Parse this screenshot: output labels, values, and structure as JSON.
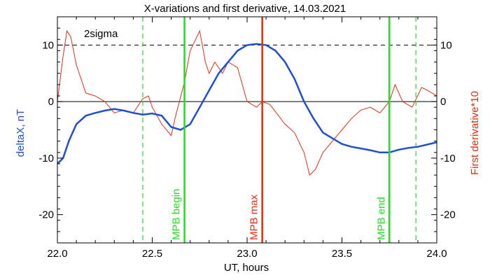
{
  "chart_data": {
    "type": "line",
    "title": "X-variations and first derivative, 14.03.2021",
    "xlabel": "UT, hours",
    "ylabel": "deltaX, nT",
    "ylabel_right": "First derivative*10",
    "xlim": [
      22.0,
      24.0
    ],
    "ylim": [
      -25,
      15
    ],
    "x_ticks": [
      22.0,
      22.5,
      23.0,
      23.5,
      24.0
    ],
    "x_tick_labels": [
      "22.0",
      "22.5",
      "23.0",
      "23.5",
      "24.0"
    ],
    "y_ticks": [
      -20,
      -10,
      0,
      10
    ],
    "y_tick_labels": [
      "-20",
      "-10",
      "0",
      "10"
    ],
    "grid": false,
    "colors": {
      "deltaX": "#1f4fd1",
      "derivative": "#e03010",
      "mpb_marker": "#22dd22",
      "mpb_max": "#e03010",
      "axis_left_label": "#1f4fd1",
      "axis_right_label": "#e03010"
    },
    "sigma_label": "2sigma",
    "sigma_level": 10,
    "series": [
      {
        "key": "deltaX",
        "x": [
          22.0,
          22.03,
          22.06,
          22.1,
          22.15,
          22.2,
          22.25,
          22.3,
          22.35,
          22.4,
          22.45,
          22.5,
          22.55,
          22.6,
          22.65,
          22.7,
          22.75,
          22.8,
          22.85,
          22.9,
          22.95,
          23.0,
          23.05,
          23.1,
          23.15,
          23.2,
          23.25,
          23.3,
          23.35,
          23.4,
          23.45,
          23.5,
          23.55,
          23.6,
          23.65,
          23.7,
          23.75,
          23.8,
          23.85,
          23.9,
          23.95,
          24.0
        ],
        "values": [
          -11.0,
          -10.0,
          -7.0,
          -4.0,
          -2.5,
          -2.0,
          -1.6,
          -1.3,
          -1.6,
          -2.0,
          -2.3,
          -2.1,
          -2.5,
          -4.5,
          -5.0,
          -4.0,
          -1.0,
          2.0,
          5.0,
          7.0,
          9.0,
          10.0,
          10.2,
          10.0,
          9.0,
          7.0,
          4.0,
          0.0,
          -3.0,
          -5.5,
          -6.5,
          -7.5,
          -8.0,
          -8.3,
          -8.6,
          -9.0,
          -9.0,
          -8.5,
          -8.2,
          -8.0,
          -7.6,
          -7.2
        ]
      },
      {
        "key": "derivative",
        "x": [
          22.0,
          22.03,
          22.05,
          22.07,
          22.1,
          22.13,
          22.15,
          22.2,
          22.25,
          22.3,
          22.35,
          22.4,
          22.45,
          22.48,
          22.5,
          22.55,
          22.6,
          22.62,
          22.67,
          22.7,
          22.75,
          22.78,
          22.8,
          22.83,
          22.87,
          22.9,
          22.95,
          23.0,
          23.05,
          23.08,
          23.12,
          23.2,
          23.25,
          23.3,
          23.33,
          23.36,
          23.4,
          23.45,
          23.5,
          23.55,
          23.6,
          23.65,
          23.7,
          23.75,
          23.78,
          23.82,
          23.87,
          23.92,
          23.95,
          24.0
        ],
        "values": [
          0.0,
          8.0,
          12.5,
          11.5,
          6.5,
          3.5,
          1.5,
          1.0,
          0.0,
          -2.0,
          -1.5,
          -2.0,
          0.5,
          1.0,
          -1.0,
          -4.0,
          -6.0,
          -3.0,
          3.5,
          9.0,
          12.5,
          7.0,
          5.0,
          7.0,
          5.0,
          7.0,
          6.0,
          0.0,
          -1.0,
          0.0,
          -0.5,
          -4.0,
          -5.5,
          -9.0,
          -13.0,
          -12.0,
          -9.0,
          -7.0,
          -5.0,
          -3.0,
          -1.5,
          -1.0,
          -2.0,
          0.0,
          3.0,
          0.0,
          -1.0,
          2.5,
          2.0,
          1.0
        ]
      }
    ],
    "annotations": [
      {
        "label": "MPB begin",
        "x": 22.67,
        "style": "solid",
        "color_key": "mpb_marker"
      },
      {
        "label": "MPB max",
        "x": 23.08,
        "style": "solid",
        "color_key": "mpb_max"
      },
      {
        "label": "MPB end",
        "x": 23.75,
        "style": "solid",
        "color_key": "mpb_marker"
      }
    ],
    "dashed_vlines": [
      22.45,
      23.89
    ],
    "dashed_hlines": [
      10
    ]
  }
}
